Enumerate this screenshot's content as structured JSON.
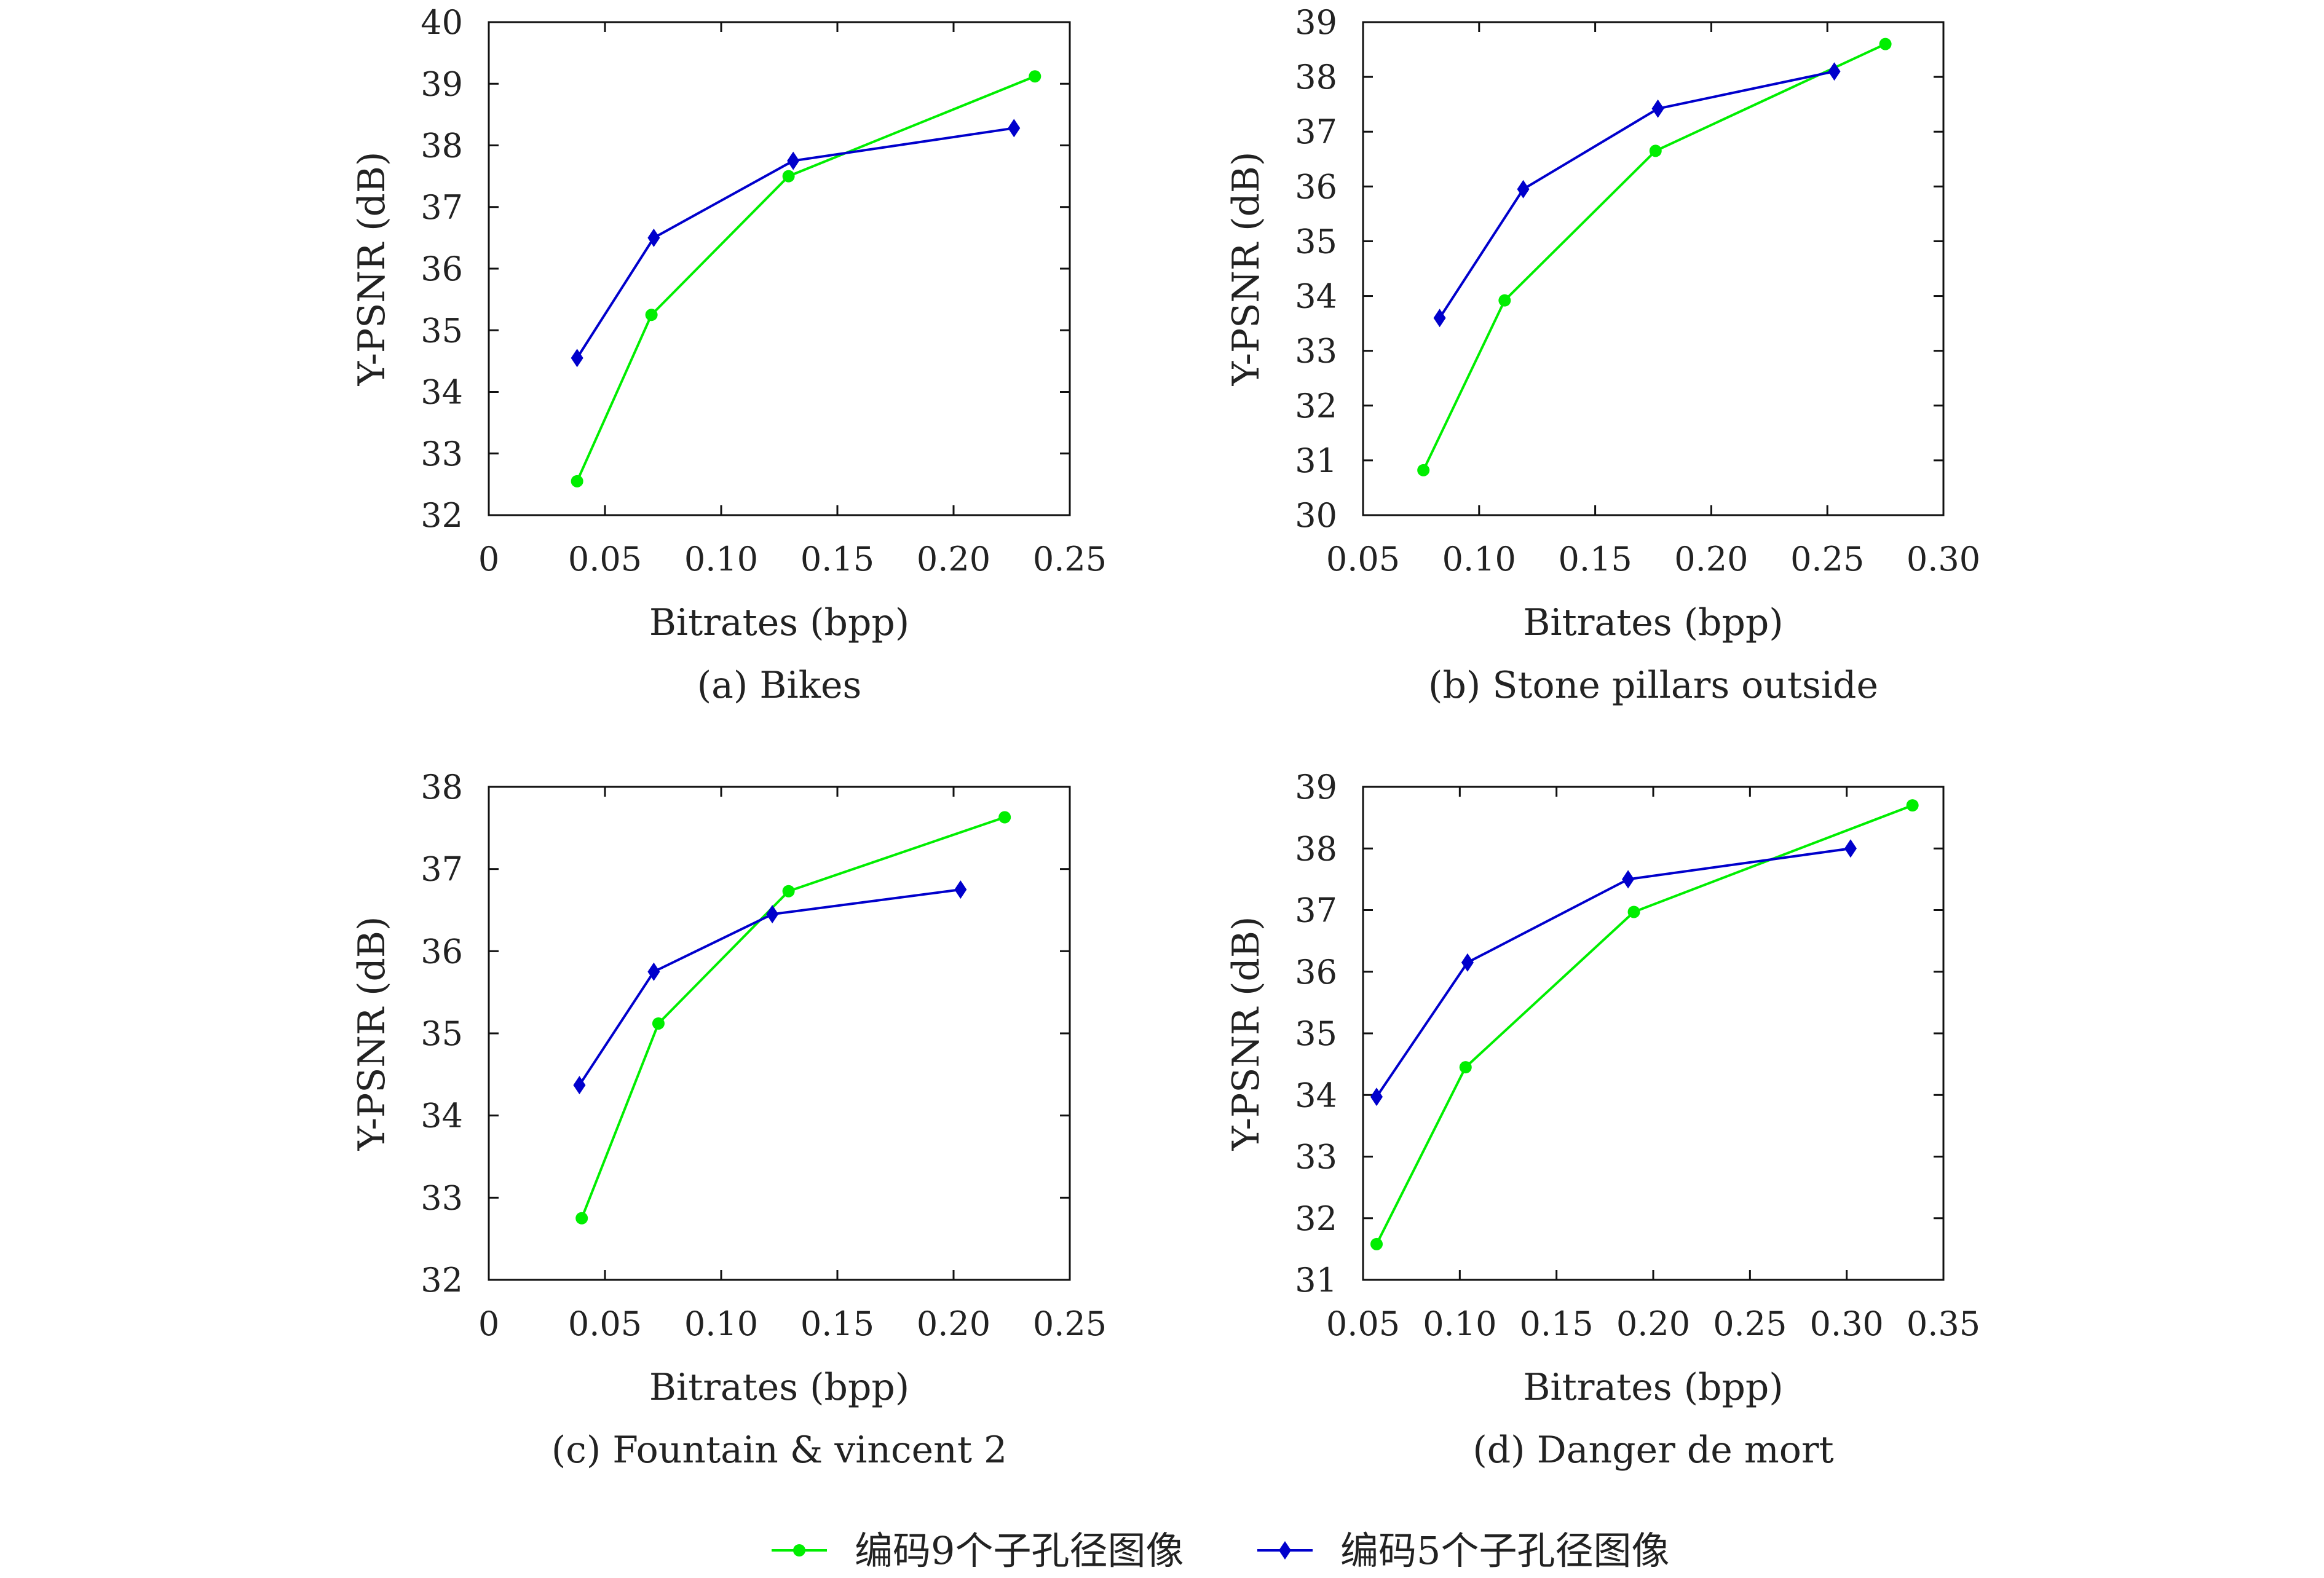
{
  "legend": {
    "items": [
      {
        "label": "编码9个子孔径图像",
        "color": "#00ee00",
        "marker": "circle"
      },
      {
        "label": "编码5个子孔径图像",
        "color": "#0000cc",
        "marker": "diamond"
      }
    ]
  },
  "chart_data": [
    {
      "type": "line",
      "title": "(a) Bikes",
      "xlabel": "Bitrates (bpp)",
      "ylabel": "Y-PSNR (dB)",
      "xlim": [
        0,
        0.25
      ],
      "ylim": [
        32,
        40
      ],
      "xticks": [
        "0",
        "0.05",
        "0.10",
        "0.15",
        "0.20",
        "0.25"
      ],
      "yticks": [
        "32",
        "33",
        "34",
        "35",
        "36",
        "37",
        "38",
        "39",
        "40"
      ],
      "series": [
        {
          "color": "#00ee00",
          "marker": "circle",
          "x": [
            0.038,
            0.07,
            0.129,
            0.235
          ],
          "y": [
            32.55,
            35.25,
            37.5,
            39.12
          ]
        },
        {
          "color": "#0000cc",
          "marker": "diamond",
          "x": [
            0.038,
            0.071,
            0.131,
            0.226
          ],
          "y": [
            34.55,
            36.5,
            37.75,
            38.28
          ]
        }
      ]
    },
    {
      "type": "line",
      "title": "(b) Stone pillars outside",
      "xlabel": "Bitrates (bpp)",
      "ylabel": "Y-PSNR (dB)",
      "xlim": [
        0.05,
        0.3
      ],
      "ylim": [
        30,
        39
      ],
      "xticks": [
        "0.05",
        "0.10",
        "0.15",
        "0.20",
        "0.25",
        "0.30"
      ],
      "yticks": [
        "30",
        "31",
        "32",
        "33",
        "34",
        "35",
        "36",
        "37",
        "38",
        "39"
      ],
      "series": [
        {
          "color": "#00ee00",
          "marker": "circle",
          "x": [
            0.076,
            0.111,
            0.176,
            0.275
          ],
          "y": [
            30.82,
            33.92,
            36.65,
            38.6
          ]
        },
        {
          "color": "#0000cc",
          "marker": "diamond",
          "x": [
            0.083,
            0.119,
            0.177,
            0.253
          ],
          "y": [
            33.6,
            35.95,
            37.42,
            38.1
          ]
        }
      ]
    },
    {
      "type": "line",
      "title": "(c) Fountain & vincent 2",
      "xlabel": "Bitrates (bpp)",
      "ylabel": "Y-PSNR (dB)",
      "xlim": [
        0,
        0.25
      ],
      "ylim": [
        32,
        38
      ],
      "xticks": [
        "0",
        "0.05",
        "0.10",
        "0.15",
        "0.20",
        "0.25"
      ],
      "yticks": [
        "32",
        "33",
        "34",
        "35",
        "36",
        "37",
        "38"
      ],
      "series": [
        {
          "color": "#00ee00",
          "marker": "circle",
          "x": [
            0.04,
            0.073,
            0.129,
            0.222
          ],
          "y": [
            32.75,
            35.12,
            36.73,
            37.63
          ]
        },
        {
          "color": "#0000cc",
          "marker": "diamond",
          "x": [
            0.039,
            0.071,
            0.122,
            0.203
          ],
          "y": [
            34.37,
            35.75,
            36.45,
            36.75
          ]
        }
      ]
    },
    {
      "type": "line",
      "title": "(d) Danger de mort",
      "xlabel": "Bitrates (bpp)",
      "ylabel": "Y-PSNR (dB)",
      "xlim": [
        0.05,
        0.35
      ],
      "ylim": [
        31,
        39
      ],
      "xticks": [
        "0.05",
        "0.10",
        "0.15",
        "0.20",
        "0.25",
        "0.30",
        "0.35"
      ],
      "yticks": [
        "31",
        "32",
        "33",
        "34",
        "35",
        "36",
        "37",
        "38",
        "39"
      ],
      "series": [
        {
          "color": "#00ee00",
          "marker": "circle",
          "x": [
            0.057,
            0.103,
            0.19,
            0.334
          ],
          "y": [
            31.58,
            34.45,
            36.97,
            38.7
          ]
        },
        {
          "color": "#0000cc",
          "marker": "diamond",
          "x": [
            0.057,
            0.104,
            0.187,
            0.302
          ],
          "y": [
            33.97,
            36.15,
            37.5,
            38.0
          ]
        }
      ]
    }
  ]
}
